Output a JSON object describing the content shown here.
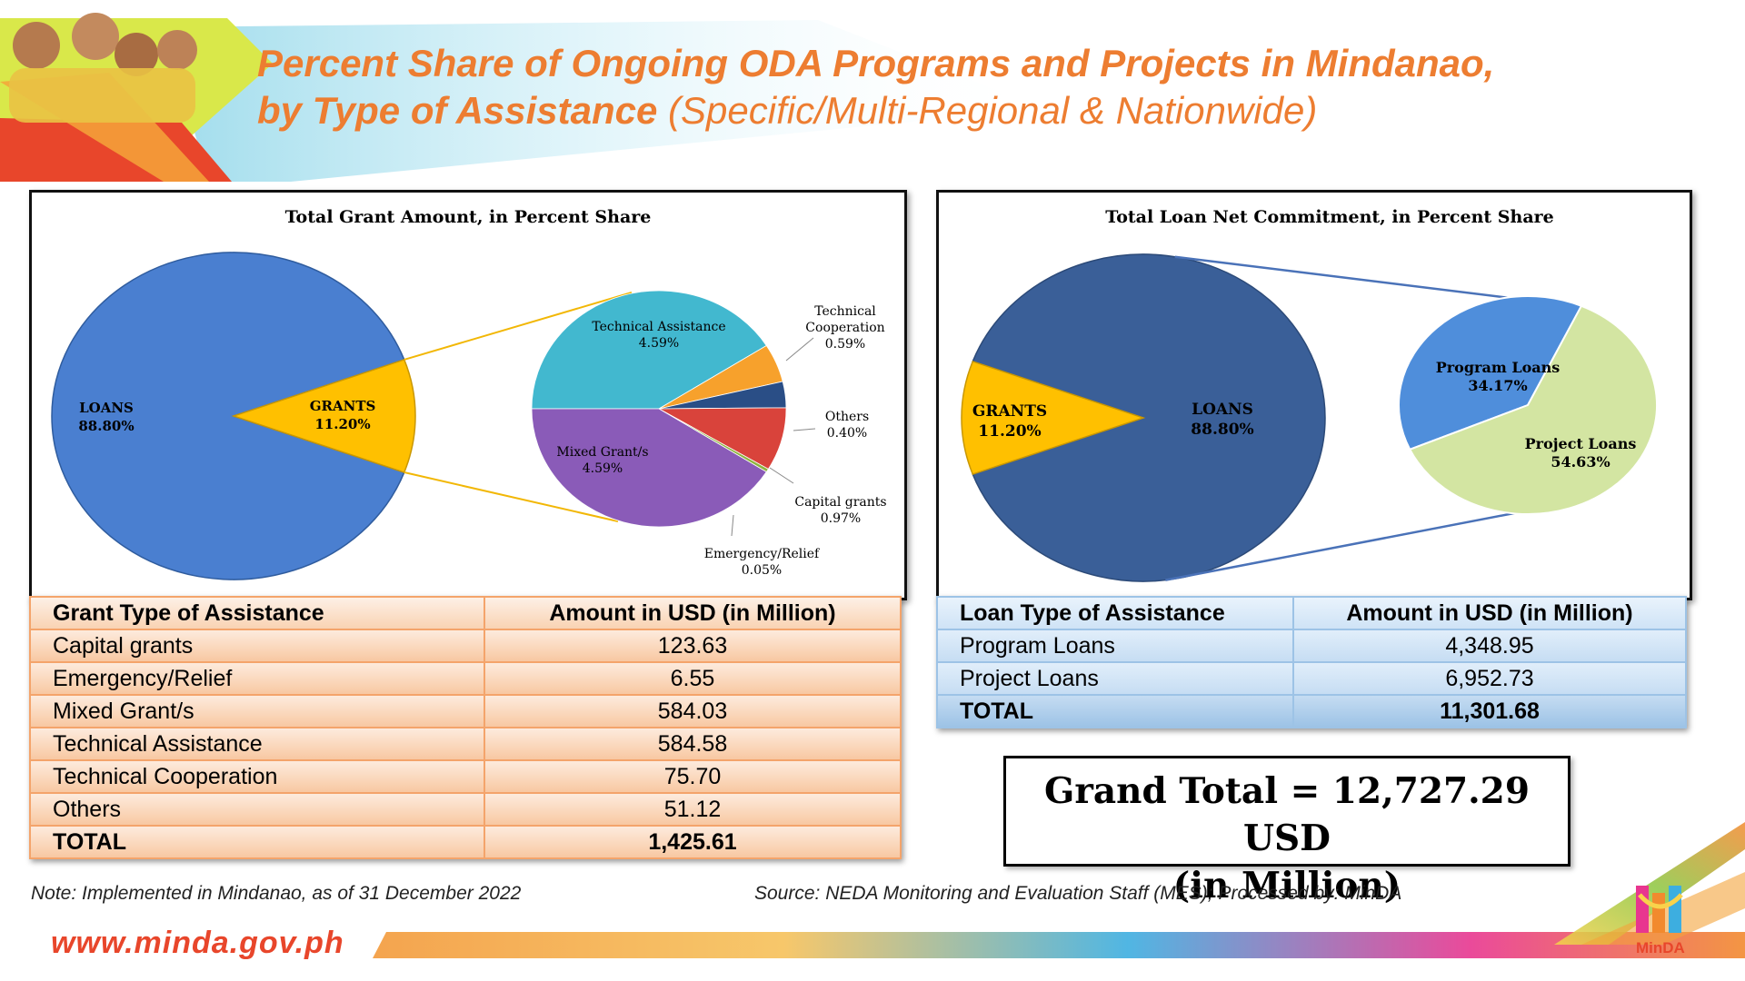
{
  "header": {
    "title_line1": "Percent Share of Ongoing ODA Programs and Projects in Mindanao,",
    "title_line2_bold": "by Type of Assistance",
    "title_line2_rest": "(Specific/Multi-Regional & Nationwide)"
  },
  "colors": {
    "title": "#ED7D31",
    "loans_blue": "#4A7FD0",
    "grants_gold": "#FFC000",
    "loan_dark_blue": "#3A5F98",
    "program_loans": "#4F8EDB",
    "project_loans": "#D3E5A2"
  },
  "chart_data": [
    {
      "type": "pie",
      "title": "Total Grant Amount, in Percent Share",
      "slices": [
        {
          "label": "LOANS",
          "value": 88.8,
          "display": "88.80%"
        },
        {
          "label": "GRANTS",
          "value": 11.2,
          "display": "11.20%"
        }
      ],
      "breakdown_of": "GRANTS",
      "breakdown": [
        {
          "label": "Technical Assistance",
          "value": 4.59,
          "display": "4.59%"
        },
        {
          "label": "Technical Cooperation",
          "value": 0.59,
          "display": "0.59%"
        },
        {
          "label": "Others",
          "value": 0.4,
          "display": "0.40%"
        },
        {
          "label": "Capital grants",
          "value": 0.97,
          "display": "0.97%"
        },
        {
          "label": "Emergency/Relief",
          "value": 0.05,
          "display": "0.05%"
        },
        {
          "label": "Mixed Grant/s",
          "value": 4.59,
          "display": "4.59%"
        }
      ]
    },
    {
      "type": "pie",
      "title": "Total Loan Net Commitment, in Percent Share",
      "slices": [
        {
          "label": "GRANTS",
          "value": 11.2,
          "display": "11.20%"
        },
        {
          "label": "LOANS",
          "value": 88.8,
          "display": "88.80%"
        }
      ],
      "breakdown_of": "LOANS",
      "breakdown": [
        {
          "label": "Program Loans",
          "value": 34.17,
          "display": "34.17%"
        },
        {
          "label": "Project Loans",
          "value": 54.63,
          "display": "54.63%"
        }
      ]
    }
  ],
  "grant_table": {
    "headers": [
      "Grant Type of Assistance",
      "Amount in USD (in Million)"
    ],
    "rows": [
      [
        "Capital grants",
        "123.63"
      ],
      [
        "Emergency/Relief",
        "6.55"
      ],
      [
        "Mixed Grant/s",
        "584.03"
      ],
      [
        "Technical Assistance",
        "584.58"
      ],
      [
        "Technical Cooperation",
        "75.70"
      ],
      [
        "Others",
        "51.12"
      ]
    ],
    "total": [
      "TOTAL",
      "1,425.61"
    ]
  },
  "loan_table": {
    "headers": [
      "Loan Type of Assistance",
      "Amount in USD (in Million)"
    ],
    "rows": [
      [
        "Program Loans",
        "4,348.95"
      ],
      [
        "Project Loans",
        "6,952.73"
      ]
    ],
    "total": [
      "TOTAL",
      "11,301.68"
    ]
  },
  "grand_total": {
    "line1": "Grand Total = 12,727.29 USD",
    "line2": "(in Million)"
  },
  "footer": {
    "note": "Note: Implemented in Mindanao, as of 31 December 2022",
    "source": "Source: NEDA Monitoring and Evaluation Staff (MES);  Processed by: MinDA",
    "website": "www.minda.gov.ph",
    "logo_text": "MinDA"
  }
}
